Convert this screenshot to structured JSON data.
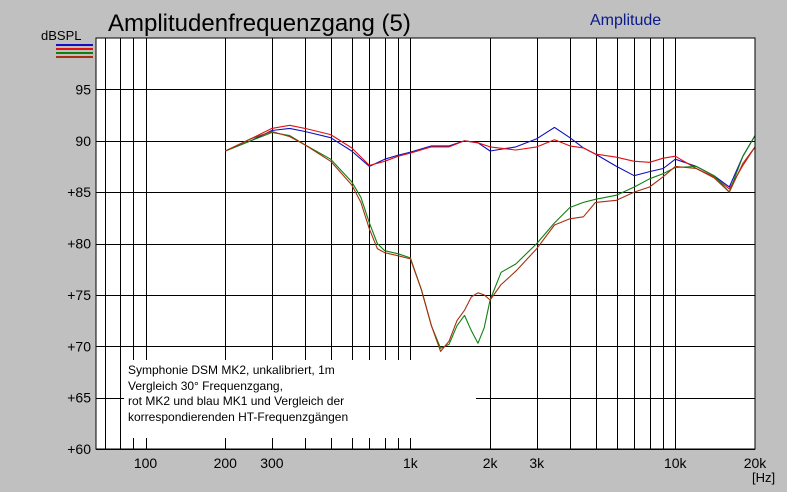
{
  "window": {
    "title": "Amplitudenfrequenzgang (5)",
    "mode_label": "Amplitude",
    "y_unit": "dBSPL",
    "x_unit": "[Hz]"
  },
  "annotation": {
    "lines": [
      "Symphonie DSM MK2, unkalibriert, 1m",
      "Vergleich 30° Frequenzgang,",
      "rot MK2 und blau MK1 und Vergleich der",
      "korrespondierenden HT-Frequenzgängen"
    ]
  },
  "colors": {
    "background": "#c0c0c0",
    "plot": "#ffffff",
    "grid": "#000000",
    "red": "#e01010",
    "blue": "#1010c0",
    "green": "#108010",
    "brown": "#a83010"
  },
  "chart_data": {
    "type": "line",
    "title": "Amplitudenfrequenzgang (5)",
    "xlabel": "[Hz]",
    "ylabel": "dBSPL",
    "x_scale": "log",
    "xlim": [
      65,
      20000
    ],
    "ylim": [
      60,
      100
    ],
    "x_ticks": [
      {
        "value": 100,
        "label": "100"
      },
      {
        "value": 200,
        "label": "200"
      },
      {
        "value": 300,
        "label": "300"
      },
      {
        "value": 1000,
        "label": "1k"
      },
      {
        "value": 2000,
        "label": "2k"
      },
      {
        "value": 3000,
        "label": "3k"
      },
      {
        "value": 10000,
        "label": "10k"
      },
      {
        "value": 20000,
        "label": "20k"
      }
    ],
    "y_ticks": [
      {
        "value": 95,
        "label": "95"
      },
      {
        "value": 90,
        "label": "90"
      },
      {
        "value": 85,
        "label": "+85"
      },
      {
        "value": 80,
        "label": "+80"
      },
      {
        "value": 75,
        "label": "+75"
      },
      {
        "value": 70,
        "label": "+70"
      },
      {
        "value": 65,
        "label": "+65"
      },
      {
        "value": 60,
        "label": "+60"
      }
    ],
    "grid": true,
    "series": [
      {
        "color": "#1010c0",
        "x": [
          200,
          250,
          300,
          350,
          400,
          500,
          600,
          700,
          800,
          900,
          1000,
          1200,
          1400,
          1600,
          1800,
          2000,
          2500,
          3000,
          3500,
          4000,
          4500,
          5000,
          6000,
          7000,
          8000,
          9000,
          10000,
          12000,
          14000,
          16000,
          18000,
          20000
        ],
        "y": [
          89.0,
          90.0,
          91.0,
          91.2,
          90.9,
          90.3,
          89.0,
          87.5,
          88.2,
          88.6,
          88.9,
          89.5,
          89.5,
          90.0,
          89.8,
          89.0,
          89.4,
          90.2,
          91.3,
          90.3,
          89.3,
          88.7,
          87.5,
          86.6,
          87.0,
          87.3,
          88.2,
          87.5,
          86.6,
          85.5,
          88.5,
          90.5
        ]
      },
      {
        "color": "#e01010",
        "x": [
          200,
          250,
          300,
          350,
          400,
          500,
          600,
          700,
          800,
          900,
          1000,
          1200,
          1400,
          1600,
          1800,
          2000,
          2500,
          3000,
          3500,
          4000,
          4500,
          5000,
          6000,
          7000,
          8000,
          9000,
          10000,
          12000,
          14000,
          16000,
          18000,
          20000
        ],
        "y": [
          89.0,
          90.2,
          91.2,
          91.5,
          91.2,
          90.6,
          89.3,
          87.6,
          88.0,
          88.5,
          88.8,
          89.4,
          89.4,
          90.0,
          89.8,
          89.4,
          89.1,
          89.4,
          90.1,
          89.5,
          89.3,
          88.7,
          88.4,
          88.0,
          87.9,
          88.3,
          88.5,
          87.3,
          86.5,
          85.3,
          87.6,
          89.4
        ]
      },
      {
        "color": "#108010",
        "x": [
          200,
          250,
          300,
          350,
          400,
          500,
          600,
          650,
          700,
          750,
          800,
          900,
          1000,
          1100,
          1200,
          1300,
          1400,
          1500,
          1600,
          1700,
          1800,
          1900,
          2000,
          2200,
          2500,
          3000,
          3500,
          4000,
          4500,
          5000,
          6000,
          7000,
          8000,
          9000,
          10000,
          12000,
          14000,
          16000,
          18000,
          20000
        ],
        "y": [
          89.0,
          90.0,
          90.8,
          90.5,
          89.6,
          88.2,
          86.0,
          84.5,
          82.0,
          80.0,
          79.3,
          79.0,
          78.6,
          75.5,
          72.0,
          69.8,
          70.2,
          72.0,
          73.0,
          71.5,
          70.3,
          71.8,
          74.5,
          77.2,
          78.0,
          80.0,
          82.0,
          83.5,
          84.0,
          84.3,
          84.7,
          85.5,
          86.3,
          86.8,
          87.4,
          87.5,
          86.6,
          85.0,
          88.5,
          90.5
        ]
      },
      {
        "color": "#a83010",
        "x": [
          200,
          250,
          300,
          350,
          400,
          500,
          600,
          650,
          700,
          750,
          800,
          900,
          1000,
          1100,
          1200,
          1300,
          1400,
          1500,
          1600,
          1700,
          1800,
          1900,
          2000,
          2200,
          2500,
          3000,
          3500,
          4000,
          4500,
          5000,
          6000,
          7000,
          8000,
          9000,
          10000,
          12000,
          14000,
          16000,
          18000,
          20000
        ],
        "y": [
          89.0,
          90.2,
          90.9,
          90.4,
          89.6,
          88.0,
          85.7,
          84.0,
          81.4,
          79.5,
          79.1,
          78.8,
          78.5,
          75.5,
          72.0,
          69.5,
          70.5,
          72.5,
          73.5,
          74.8,
          75.2,
          75.0,
          74.5,
          76.0,
          77.3,
          79.5,
          81.8,
          82.4,
          82.6,
          84.0,
          84.2,
          85.0,
          85.5,
          86.5,
          87.5,
          87.3,
          86.4,
          85.0,
          87.8,
          89.4
        ]
      }
    ]
  }
}
